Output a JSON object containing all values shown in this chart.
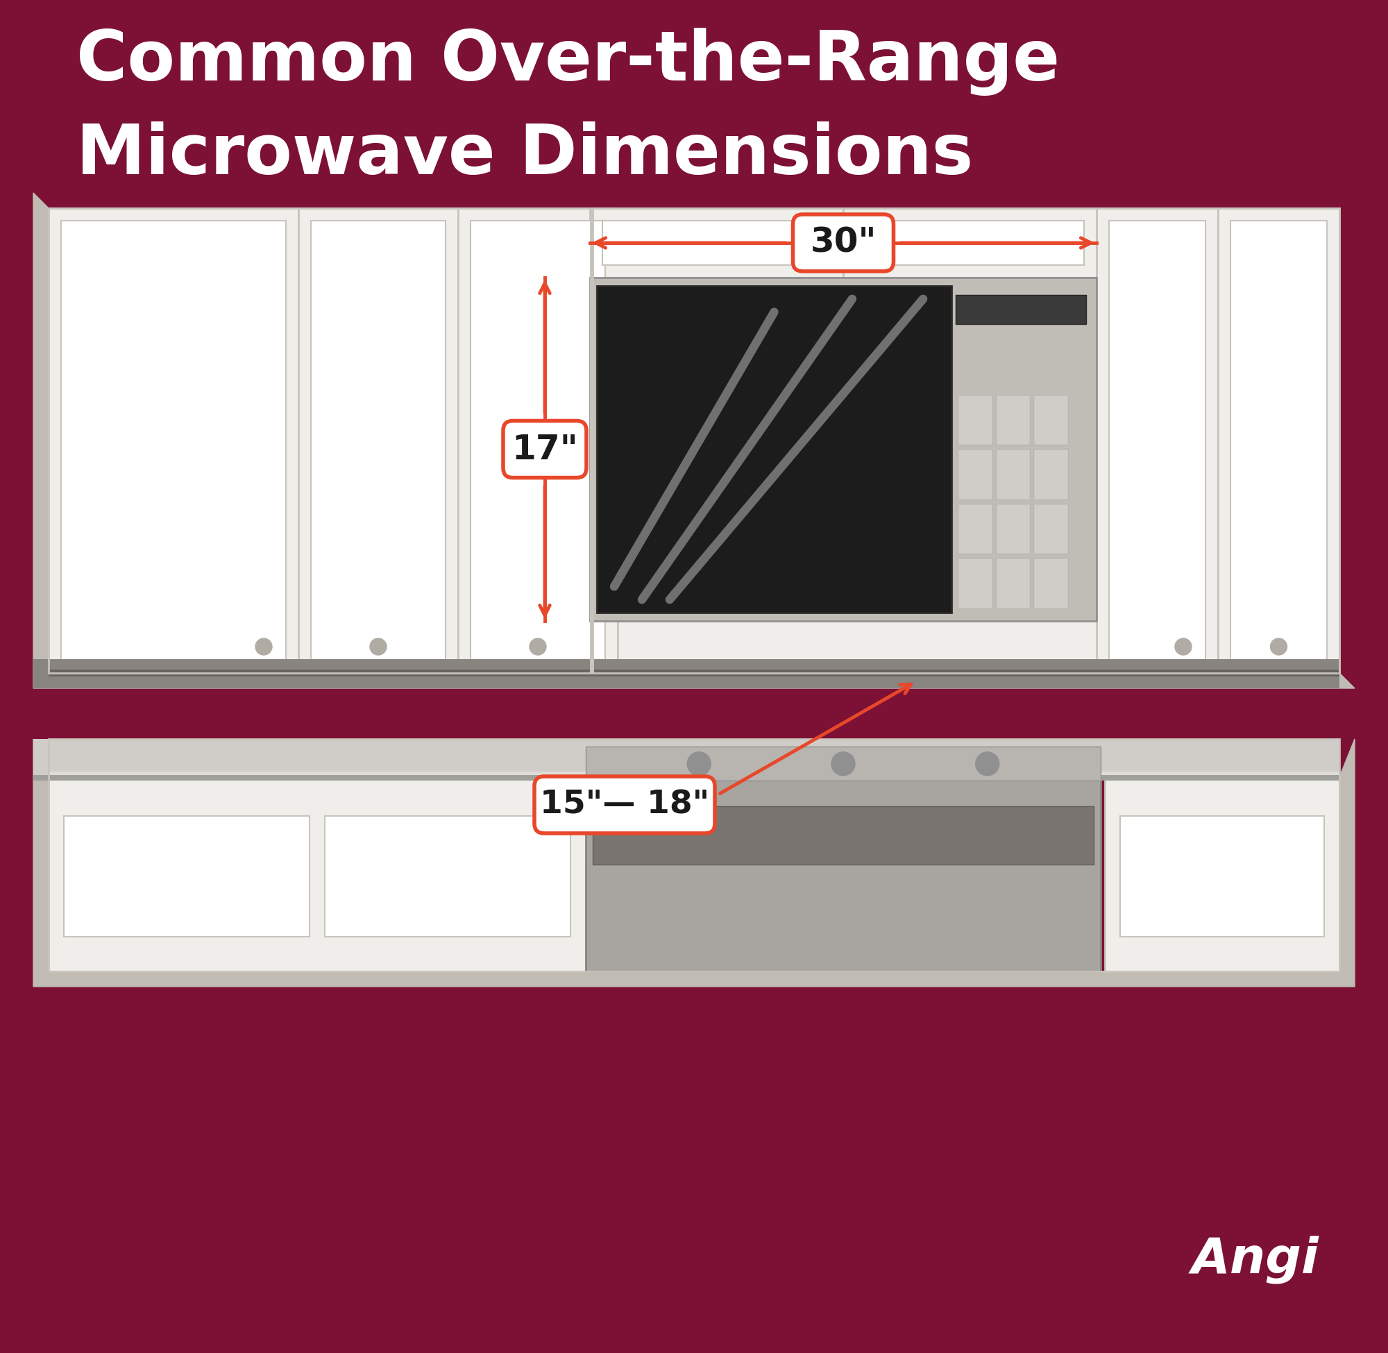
{
  "bg_color": "#7d1035",
  "title_line1": "Common Over-the-Range",
  "title_line2": "Microwave Dimensions",
  "title_color": "#ffffff",
  "cabinet_color": "#f0eeea",
  "cabinet_border_color": "#c8c4bc",
  "cabinet_shadow_color": "#c0bcb4",
  "cabinet_inner_color": "#ffffff",
  "cabinet_inner_border": "#c8c4bc",
  "microwave_body_color": "#c0bdb6",
  "microwave_glass1": "#2a2a2a",
  "microwave_glass2": "#555550",
  "arrow_color": "#e8472a",
  "label_bg_color": "#e8472a",
  "label_text_color": "#1a1a1a",
  "label_17": "17\"",
  "label_30": "30\"",
  "label_depth": "15\"— 18\"",
  "angi_color": "#ffffff",
  "counter_color": "#888480",
  "counter_top_color": "#6a6460",
  "lower_cab_color": "#f0eeea",
  "lower_top_color": "#d0cdc8",
  "stove_color": "#a8a4a0",
  "stove_dark": "#7a7470",
  "knob_color": "#909090"
}
